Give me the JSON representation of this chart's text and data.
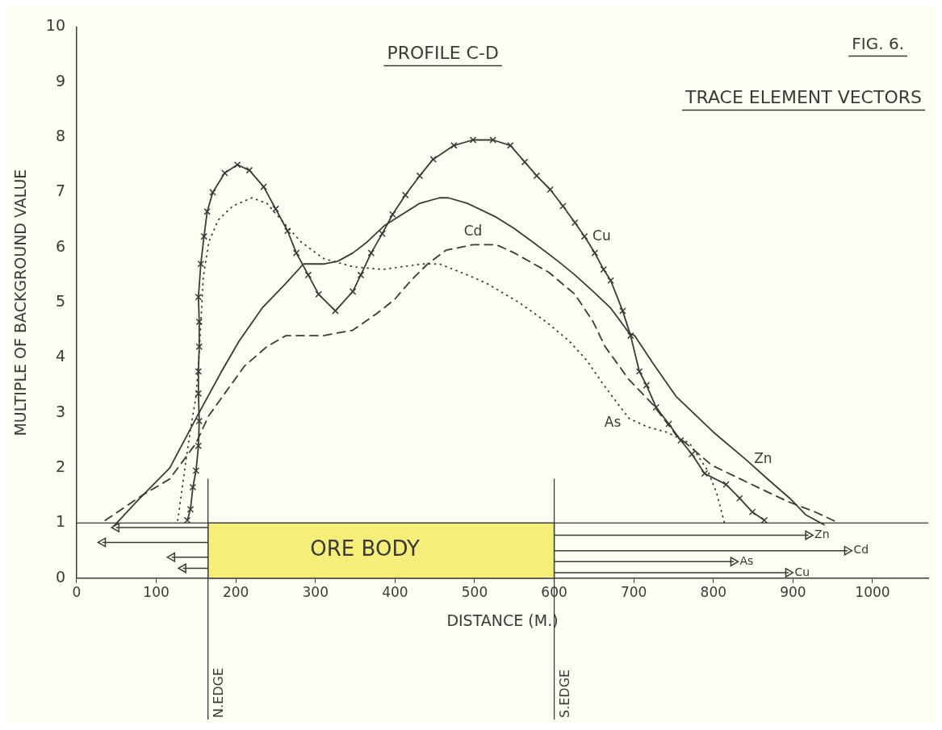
{
  "chart_data": {
    "type": "line",
    "title": "PROFILE C-D",
    "subtitle": "TRACE ELEMENT VECTORS",
    "xlabel": "DISTANCE (M.)",
    "ylabel": "MULTIPLE OF BACKGROUND VALUE",
    "xlim": [
      0,
      1070
    ],
    "xticks": [
      0,
      100,
      200,
      300,
      400,
      500,
      600,
      700,
      800,
      900,
      1000
    ],
    "ylim": [
      0,
      10
    ],
    "yticks": [
      0,
      1,
      2,
      3,
      4,
      5,
      6,
      7,
      8,
      9,
      10
    ],
    "grid": false,
    "annotations": [
      "FIG. 6.",
      {
        "text": "Zn",
        "x": 919,
        "y": 0.78
      },
      {
        "text": "Cd",
        "x": 968,
        "y": 0.5
      },
      {
        "text": "As",
        "x": 825,
        "y": 0.3
      },
      {
        "text": "Cu",
        "x": 894,
        "y": 0.1
      }
    ],
    "bands": [
      {
        "axis": "x",
        "from": 165,
        "to": 600,
        "label": "ORE BODY",
        "color": "#f5ef7a"
      }
    ],
    "ref_lines": [
      {
        "axis": "y",
        "value": 1,
        "color": "#3a3a3a"
      },
      {
        "axis": "x",
        "value": 165,
        "label": "N.EDGE",
        "color": "#3a3a3a"
      },
      {
        "axis": "x",
        "value": 600,
        "label": "S.EDGE",
        "color": "#3a3a3a"
      }
    ],
    "series": [
      {
        "name": "Cu",
        "color": "#3a3a3a",
        "line_style": "solid",
        "marker": "cross",
        "x": [
          139,
          143,
          146,
          150,
          153,
          154,
          153,
          153,
          154,
          154,
          153,
          156,
          160,
          164,
          171,
          186,
          202,
          217,
          235,
          250,
          265,
          276,
          291,
          304,
          325,
          347,
          357,
          370,
          384,
          397,
          413,
          431,
          448,
          474,
          498,
          523,
          545,
          563,
          578,
          595,
          611,
          626,
          638,
          651,
          662,
          671,
          686,
          696,
          707,
          716,
          728,
          744,
          759,
          773,
          789,
          816,
          833,
          849,
          864
        ],
        "values": [
          1.05,
          1.25,
          1.65,
          1.95,
          2.4,
          2.85,
          3.35,
          3.75,
          4.2,
          4.65,
          5.1,
          5.7,
          6.2,
          6.65,
          7.0,
          7.35,
          7.5,
          7.4,
          7.1,
          6.7,
          6.3,
          5.9,
          5.5,
          5.15,
          4.85,
          5.2,
          5.5,
          5.9,
          6.25,
          6.6,
          6.95,
          7.3,
          7.6,
          7.85,
          7.95,
          7.95,
          7.85,
          7.55,
          7.3,
          7.05,
          6.75,
          6.45,
          6.2,
          5.9,
          5.6,
          5.4,
          4.85,
          4.4,
          3.75,
          3.5,
          3.1,
          2.8,
          2.5,
          2.25,
          1.9,
          1.7,
          1.45,
          1.2,
          1.05
        ]
      },
      {
        "name": "Zn",
        "color": "#3a3a3a",
        "line_style": "solid",
        "x": [
          47,
          78,
          117,
          150,
          182,
          204,
          233,
          263,
          285,
          310,
          328,
          347,
          365,
          387,
          409,
          431,
          456,
          467,
          491,
          527,
          549,
          573,
          605,
          626,
          649,
          671,
          694,
          701,
          724,
          753,
          800,
          841,
          872,
          896,
          916,
          939
        ],
        "values": [
          0.95,
          1.43,
          2.0,
          2.9,
          3.75,
          4.3,
          4.9,
          5.35,
          5.7,
          5.7,
          5.75,
          5.9,
          6.1,
          6.4,
          6.6,
          6.8,
          6.9,
          6.9,
          6.8,
          6.55,
          6.35,
          6.1,
          5.75,
          5.5,
          5.2,
          4.9,
          4.45,
          4.4,
          3.9,
          3.3,
          2.65,
          2.15,
          1.75,
          1.45,
          1.15,
          0.97
        ]
      },
      {
        "name": "As",
        "color": "#3a3a3a",
        "line_style": "dotted",
        "x": [
          127,
          136,
          143,
          150,
          154,
          157,
          159,
          166,
          178,
          196,
          220,
          239,
          263,
          282,
          310,
          347,
          384,
          434,
          456,
          491,
          515,
          556,
          590,
          619,
          641,
          660,
          678,
          694,
          716,
          741,
          770,
          793,
          804,
          814
        ],
        "values": [
          1.05,
          2.0,
          2.7,
          3.3,
          4.1,
          4.9,
          5.45,
          6.1,
          6.5,
          6.75,
          6.9,
          6.8,
          6.4,
          6.1,
          5.8,
          5.65,
          5.6,
          5.7,
          5.7,
          5.5,
          5.35,
          5.0,
          4.65,
          4.3,
          3.95,
          3.55,
          3.2,
          2.9,
          2.75,
          2.65,
          2.45,
          1.95,
          1.55,
          1.0
        ]
      },
      {
        "name": "Cd",
        "color": "#3a3a3a",
        "line_style": "dashed",
        "x": [
          36,
          82,
          117,
          150,
          166,
          186,
          211,
          239,
          263,
          310,
          347,
          377,
          399,
          420,
          441,
          464,
          498,
          527,
          550,
          593,
          626,
          649,
          664,
          694,
          724,
          753,
          798,
          841,
          892,
          928,
          958
        ],
        "values": [
          1.05,
          1.5,
          1.8,
          2.45,
          2.95,
          3.35,
          3.85,
          4.2,
          4.4,
          4.4,
          4.5,
          4.8,
          5.05,
          5.4,
          5.7,
          5.95,
          6.05,
          6.05,
          5.9,
          5.55,
          5.15,
          4.65,
          4.2,
          3.6,
          3.15,
          2.6,
          2.05,
          1.75,
          1.4,
          1.2,
          1.0
        ]
      },
      {
        "color": "#3a3a3a",
        "line_style": "solid",
        "marker": "triangle",
        "x": [
          600,
          919
        ],
        "values": [
          0.78,
          0.78
        ]
      },
      {
        "color": "#3a3a3a",
        "line_style": "solid",
        "marker": "triangle",
        "x": [
          600,
          968
        ],
        "values": [
          0.5,
          0.5
        ]
      },
      {
        "color": "#3a3a3a",
        "line_style": "solid",
        "marker": "triangle",
        "x": [
          600,
          825
        ],
        "values": [
          0.3,
          0.3
        ]
      },
      {
        "color": "#3a3a3a",
        "line_style": "solid",
        "marker": "triangle",
        "x": [
          600,
          894
        ],
        "values": [
          0.1,
          0.1
        ]
      },
      {
        "color": "#3a3a3a",
        "line_style": "solid",
        "marker": "triangle",
        "x": [
          165,
          50
        ],
        "values": [
          0.92,
          0.92
        ]
      },
      {
        "color": "#3a3a3a",
        "line_style": "solid",
        "marker": "triangle",
        "x": [
          165,
          33
        ],
        "values": [
          0.65,
          0.65
        ]
      },
      {
        "color": "#3a3a3a",
        "line_style": "solid",
        "marker": "triangle",
        "x": [
          165,
          120
        ],
        "values": [
          0.38,
          0.38
        ]
      },
      {
        "color": "#3a3a3a",
        "line_style": "solid",
        "marker": "triangle",
        "x": [
          165,
          134
        ],
        "values": [
          0.18,
          0.18
        ]
      }
    ]
  }
}
